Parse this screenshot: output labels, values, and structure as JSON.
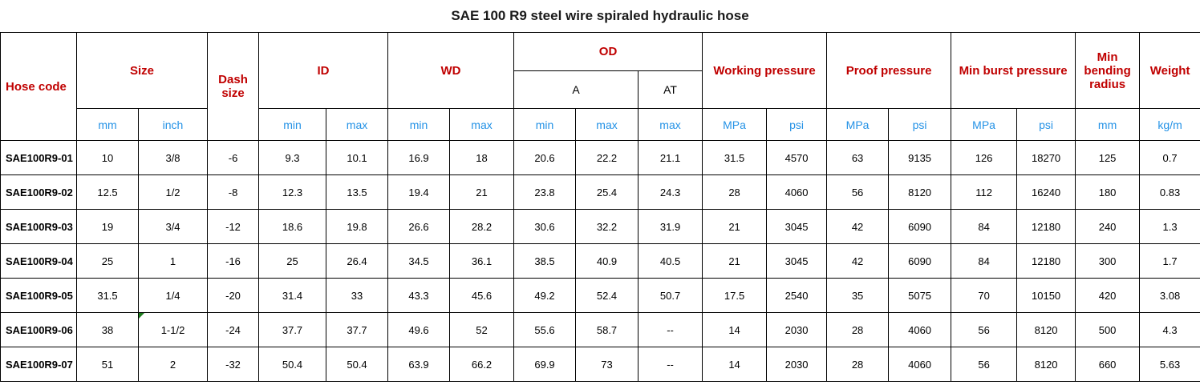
{
  "title": "SAE 100 R9 steel wire spiraled hydraulic hose",
  "colors": {
    "header_red": "#c00000",
    "unit_blue": "#2492e6",
    "border_black": "#000000",
    "flag_green": "#1e7d1e"
  },
  "header": {
    "hose_code": "Hose code",
    "size": "Size",
    "dash_size": "Dash size",
    "id": "ID",
    "wd": "WD",
    "od": "OD",
    "od_a": "A",
    "od_at": "AT",
    "working_pressure": "Working pressure",
    "proof_pressure": "Proof pressure",
    "min_burst_pressure": "Min burst pressure",
    "min_bending_radius": "Min bending radius",
    "weight": "Weight"
  },
  "units": {
    "mm": "mm",
    "inch": "inch",
    "min": "min",
    "max": "max",
    "mpa": "MPa",
    "psi": "psi",
    "kgm": "kg/m"
  },
  "rows": [
    {
      "code": "SAE100R9-01",
      "values": [
        "10",
        "3/8",
        "-6",
        "9.3",
        "10.1",
        "16.9",
        "18",
        "20.6",
        "22.2",
        "21.1",
        "31.5",
        "4570",
        "63",
        "9135",
        "126",
        "18270",
        "125",
        "0.7"
      ]
    },
    {
      "code": "SAE100R9-02",
      "values": [
        "12.5",
        "1/2",
        "-8",
        "12.3",
        "13.5",
        "19.4",
        "21",
        "23.8",
        "25.4",
        "24.3",
        "28",
        "4060",
        "56",
        "8120",
        "112",
        "16240",
        "180",
        "0.83"
      ]
    },
    {
      "code": "SAE100R9-03",
      "values": [
        "19",
        "3/4",
        "-12",
        "18.6",
        "19.8",
        "26.6",
        "28.2",
        "30.6",
        "32.2",
        "31.9",
        "21",
        "3045",
        "42",
        "6090",
        "84",
        "12180",
        "240",
        "1.3"
      ]
    },
    {
      "code": "SAE100R9-04",
      "values": [
        "25",
        "1",
        "-16",
        "25",
        "26.4",
        "34.5",
        "36.1",
        "38.5",
        "40.9",
        "40.5",
        "21",
        "3045",
        "42",
        "6090",
        "84",
        "12180",
        "300",
        "1.7"
      ]
    },
    {
      "code": "SAE100R9-05",
      "values": [
        "31.5",
        "1/4",
        "-20",
        "31.4",
        "33",
        "43.3",
        "45.6",
        "49.2",
        "52.4",
        "50.7",
        "17.5",
        "2540",
        "35",
        "5075",
        "70",
        "10150",
        "420",
        "3.08"
      ]
    },
    {
      "code": "SAE100R9-06",
      "flag_col": 1,
      "values": [
        "38",
        "1-1/2",
        "-24",
        "37.7",
        "37.7",
        "49.6",
        "52",
        "55.6",
        "58.7",
        "--",
        "14",
        "2030",
        "28",
        "4060",
        "56",
        "8120",
        "500",
        "4.3"
      ]
    },
    {
      "code": "SAE100R9-07",
      "values": [
        "51",
        "2",
        "-32",
        "50.4",
        "50.4",
        "63.9",
        "66.2",
        "69.9",
        "73",
        "--",
        "14",
        "2030",
        "28",
        "4060",
        "56",
        "8120",
        "660",
        "5.63"
      ]
    }
  ]
}
